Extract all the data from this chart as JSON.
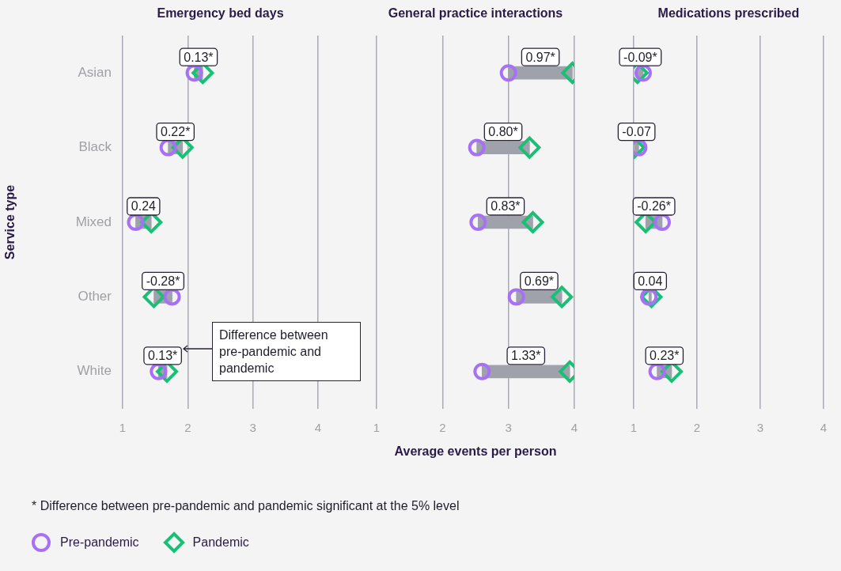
{
  "chart_data": [
    {
      "type": "scatter",
      "orientation": "horizontal",
      "title": "Emergency bed days",
      "ylabel": "Service type",
      "categories": [
        "Asian",
        "Black",
        "Mixed",
        "Other",
        "White"
      ],
      "series": [
        {
          "type": "bar",
          "color": "#9fa2aa",
          "base": [
            2.1,
            1.7,
            1.2,
            1.76,
            1.55
          ],
          "values": [
            0.13,
            0.22,
            0.24,
            -0.28,
            0.13
          ],
          "value_labels": [
            "0.13*",
            "0.22*",
            "0.24",
            "-0.28*",
            "0.13*"
          ]
        },
        {
          "name": "Pre-pandemic",
          "color": "#a771f5",
          "marker": "circle",
          "values": [
            2.1,
            1.7,
            1.2,
            1.76,
            1.55
          ]
        },
        {
          "name": "Pandemic",
          "color": "#1abf76",
          "marker": "diamond",
          "values": [
            2.23,
            1.92,
            1.44,
            1.48,
            1.68
          ]
        }
      ],
      "xlim": [
        1,
        4
      ],
      "xticks": [
        1,
        2,
        3,
        4
      ],
      "grid": "x",
      "legend": "bottom",
      "annotations": [
        "Difference between pre-pandemic and pandemic",
        "* Difference between pre-pandemic and pandemic significant at the 5% level"
      ]
    },
    {
      "type": "scatter",
      "orientation": "horizontal",
      "title": "General practice interactions",
      "xlabel": "Average events per person",
      "categories": [
        null,
        null,
        null,
        null,
        null
      ],
      "series": [
        {
          "type": "bar",
          "color": "#9fa2aa",
          "base": [
            3.0,
            2.52,
            2.54,
            3.12,
            2.6
          ],
          "values": [
            0.97,
            0.8,
            0.83,
            0.69,
            1.33
          ],
          "value_labels": [
            "0.97*",
            "0.80*",
            "0.83*",
            "0.69*",
            "1.33*"
          ]
        },
        {
          "color": "#a771f5",
          "marker": "circle",
          "values": [
            3.0,
            2.52,
            2.54,
            3.12,
            2.6
          ]
        },
        {
          "color": "#1abf76",
          "marker": "diamond",
          "values": [
            3.97,
            3.32,
            3.37,
            3.81,
            3.93
          ]
        }
      ],
      "xlim": [
        1,
        4
      ],
      "xticks": [
        1,
        2,
        3,
        4
      ],
      "grid": "x",
      "tick_labels": "x"
    },
    {
      "type": "scatter",
      "orientation": "horizontal",
      "title": "Medications prescribed",
      "categories": [
        null,
        null,
        null,
        null,
        null
      ],
      "series": [
        {
          "type": "bar",
          "color": "#9fa2aa",
          "base": [
            1.15,
            1.08,
            1.45,
            1.24,
            1.37
          ],
          "values": [
            -0.09,
            -0.07,
            -0.26,
            0.04,
            0.23
          ],
          "value_labels": [
            "-0.09*",
            "-0.07",
            "-0.26*",
            "0.04",
            "0.23*"
          ]
        },
        {
          "color": "#a771f5",
          "marker": "circle",
          "values": [
            1.15,
            1.08,
            1.45,
            1.24,
            1.37
          ]
        },
        {
          "color": "#1abf76",
          "marker": "diamond",
          "values": [
            1.06,
            1.01,
            1.19,
            1.28,
            1.6
          ]
        }
      ],
      "xlim": [
        1,
        4
      ],
      "xticks": [
        1,
        2,
        3,
        4
      ],
      "grid": "x",
      "tick_labels": "x"
    }
  ]
}
